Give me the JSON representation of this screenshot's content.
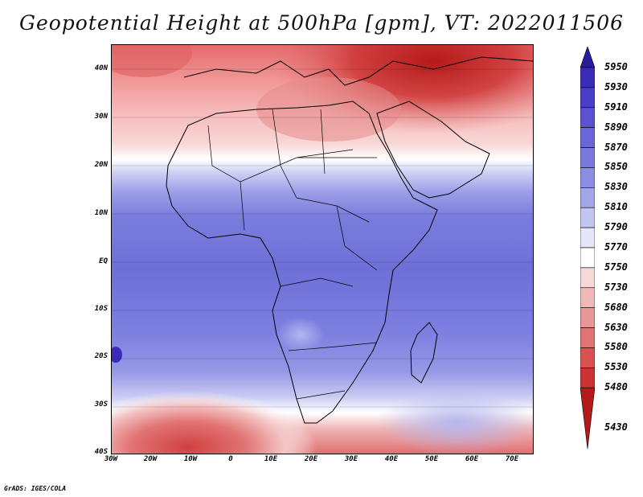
{
  "title": "Geopotential Height at 500hPa [gpm], VT: 2022011506",
  "credit": "GrADS: IGES/COLA",
  "lat_labels": [
    "40N",
    "30N",
    "20N",
    "10N",
    "EQ",
    "10S",
    "20S",
    "30S",
    "40S"
  ],
  "lon_labels": [
    "30W",
    "20W",
    "10W",
    "0",
    "10E",
    "20E",
    "30E",
    "40E",
    "50E",
    "60E",
    "70E"
  ],
  "colorbar": {
    "levels": [
      "5950",
      "5930",
      "5910",
      "5890",
      "5870",
      "5850",
      "5830",
      "5810",
      "5790",
      "5770",
      "5750",
      "5730",
      "5680",
      "5630",
      "5580",
      "5530",
      "5480",
      "5430"
    ],
    "colors": [
      "#2a1aa0",
      "#3a2cb8",
      "#4a3ec8",
      "#5a52d0",
      "#6a66d8",
      "#7a78dc",
      "#8c8ce2",
      "#a4a6ea",
      "#c4c6f2",
      "#e6e6fa",
      "#ffffff",
      "#f6d8d8",
      "#f0b8b8",
      "#e89696",
      "#e07474",
      "#d85252",
      "#cc3434",
      "#b51a1a"
    ]
  },
  "chart_data": {
    "type": "heatmap",
    "title": "Geopotential Height at 500hPa [gpm], VT: 2022011506",
    "variable": "Geopotential Height at 500hPa",
    "units": "gpm",
    "valid_time": "2022011506",
    "xlim": [
      -30,
      75
    ],
    "ylim": [
      -40,
      45
    ],
    "x_ticks": [
      "30W",
      "20W",
      "10W",
      "0",
      "10E",
      "20E",
      "30E",
      "40E",
      "50E",
      "60E",
      "70E"
    ],
    "y_ticks": [
      "40N",
      "30N",
      "20N",
      "10N",
      "EQ",
      "10S",
      "20S",
      "30S",
      "40S"
    ],
    "colorbar_levels": [
      5430,
      5480,
      5530,
      5580,
      5630,
      5680,
      5730,
      5750,
      5770,
      5790,
      5810,
      5830,
      5850,
      5870,
      5890,
      5910,
      5930,
      5950
    ]
  }
}
